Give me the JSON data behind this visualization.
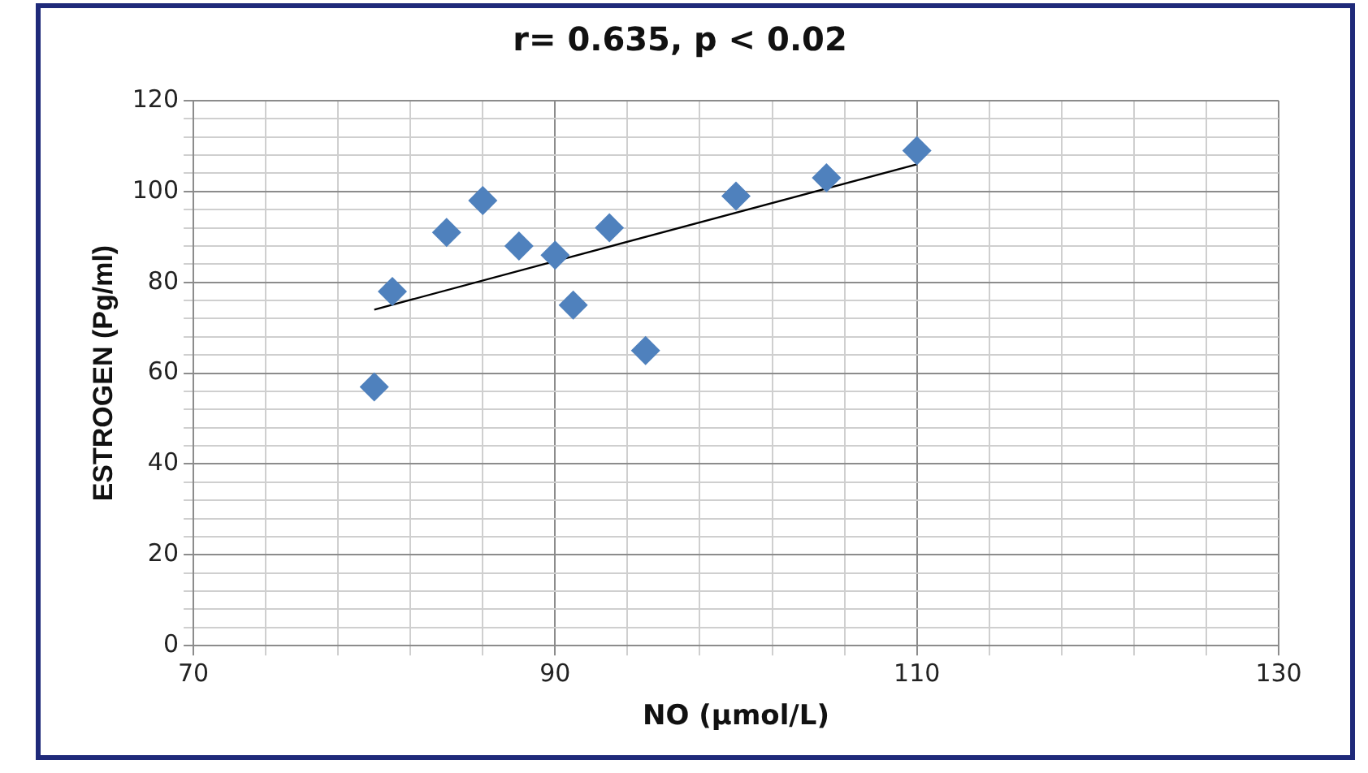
{
  "chart_data": {
    "type": "scatter",
    "title": "r= 0.635, p < 0.02",
    "xlabel": "NO (µmol/L)",
    "ylabel": "ESTROGEN (Pg/ml)",
    "x": [
      80,
      81,
      84,
      86,
      88,
      90,
      91,
      93,
      95,
      100,
      105,
      110
    ],
    "series": [
      {
        "color": "#4f81bd",
        "marker": "diamond",
        "values": [
          57,
          78,
          91,
          98,
          88,
          86,
          75,
          92,
          65,
          99,
          103,
          109
        ]
      },
      {
        "type": "line",
        "color": "#000000",
        "marker": "none",
        "x": [
          80,
          110
        ],
        "values": [
          74,
          106
        ]
      }
    ],
    "xlim": [
      70,
      130
    ],
    "ylim": [
      0,
      120
    ],
    "xticks": [
      70,
      {
        "value": 74,
        "label": null
      },
      {
        "value": 78,
        "label": null
      },
      {
        "value": 82,
        "label": null
      },
      {
        "value": 86,
        "label": null
      },
      90,
      {
        "value": 94,
        "label": null
      },
      {
        "value": 98,
        "label": null
      },
      {
        "value": 102,
        "label": null
      },
      {
        "value": 106,
        "label": null
      },
      110,
      {
        "value": 114,
        "label": null
      },
      {
        "value": 118,
        "label": null
      },
      {
        "value": 122,
        "label": null
      },
      {
        "value": 126,
        "label": null
      },
      130
    ],
    "yticks": [
      0,
      {
        "value": 4,
        "label": null
      },
      {
        "value": 8,
        "label": null
      },
      {
        "value": 12,
        "label": null
      },
      {
        "value": 16,
        "label": null
      },
      20,
      {
        "value": 24,
        "label": null
      },
      {
        "value": 28,
        "label": null
      },
      {
        "value": 32,
        "label": null
      },
      {
        "value": 36,
        "label": null
      },
      40,
      {
        "value": 44,
        "label": null
      },
      {
        "value": 48,
        "label": null
      },
      {
        "value": 52,
        "label": null
      },
      {
        "value": 56,
        "label": null
      },
      60,
      {
        "value": 64,
        "label": null
      },
      {
        "value": 68,
        "label": null
      },
      {
        "value": 72,
        "label": null
      },
      {
        "value": 76,
        "label": null
      },
      80,
      {
        "value": 84,
        "label": null
      },
      {
        "value": 88,
        "label": null
      },
      {
        "value": 92,
        "label": null
      },
      {
        "value": 96,
        "label": null
      },
      100,
      {
        "value": 104,
        "label": null
      },
      {
        "value": 108,
        "label": null
      },
      {
        "value": 112,
        "label": null
      },
      {
        "value": 116,
        "label": null
      },
      120
    ],
    "grid": true,
    "legend": false
  }
}
